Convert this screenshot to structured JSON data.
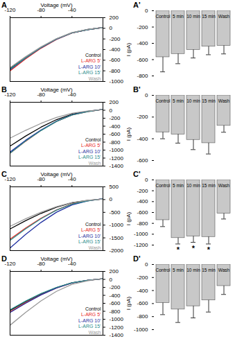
{
  "chart_data": [
    {
      "type": "line",
      "title": "A",
      "xlabel": "Voltage (mV)",
      "ylabel": "I (pA)",
      "legend": "bottom-right",
      "x": [
        -120,
        -100,
        -80,
        -60,
        -40,
        -20,
        0
      ],
      "xlim": [
        -120,
        0
      ],
      "xticks": [
        -120,
        -80,
        -40
      ],
      "ylim": [
        -1000,
        200
      ],
      "yticks": [
        200,
        0,
        -200,
        -400,
        -600,
        -800,
        -1000
      ],
      "series": [
        {
          "name": "Control",
          "color": "#000000",
          "values": [
            -760,
            -550,
            -360,
            -200,
            -85,
            -25,
            15
          ]
        },
        {
          "name": "L-ARG 5'",
          "color": "#e8281e",
          "values": [
            -800,
            -575,
            -375,
            -210,
            -90,
            -25,
            15
          ]
        },
        {
          "name": "L-ARG 10'",
          "color": "#1f2fa0",
          "values": [
            -780,
            -560,
            -365,
            -205,
            -85,
            -25,
            15
          ]
        },
        {
          "name": "L-ARG 15'",
          "color": "#2a8c8c",
          "values": [
            -770,
            -555,
            -360,
            -200,
            -85,
            -25,
            15
          ]
        },
        {
          "name": "Wash",
          "color": "#999999",
          "values": [
            -740,
            -535,
            -350,
            -195,
            -80,
            -20,
            15
          ]
        }
      ]
    },
    {
      "type": "bar",
      "title": "A'",
      "categories": [
        "Control",
        "5 min",
        "10 min",
        "15 min",
        "Wash"
      ],
      "values": [
        -570,
        -530,
        -480,
        -440,
        -430
      ],
      "errors": [
        180,
        120,
        100,
        100,
        100
      ],
      "color": "#c8c8c8",
      "ylim": [
        -800,
        0
      ],
      "yticks": [
        0,
        -200,
        -400,
        -600,
        -800
      ]
    },
    {
      "type": "line",
      "title": "B",
      "xlabel": "Voltage (mV)",
      "ylabel": "I (pA)",
      "legend": "bottom-right",
      "x": [
        -120,
        -100,
        -80,
        -60,
        -40,
        -20,
        0
      ],
      "xlim": [
        -120,
        0
      ],
      "xticks": [
        -120,
        -80,
        -40
      ],
      "ylim": [
        -1400,
        200
      ],
      "yticks": [
        200,
        0,
        -200,
        -400,
        -600,
        -800,
        -1000,
        -1200,
        -1400
      ],
      "series": [
        {
          "name": "Control",
          "color": "#000000",
          "values": [
            -900,
            -650,
            -425,
            -235,
            -100,
            -30,
            20
          ]
        },
        {
          "name": "L-ARG 5'",
          "color": "#e8281e",
          "values": [
            -1080,
            -780,
            -505,
            -280,
            -120,
            -35,
            20
          ]
        },
        {
          "name": "L-ARG 10'",
          "color": "#1f2fa0",
          "values": [
            -1050,
            -755,
            -495,
            -275,
            -115,
            -30,
            20
          ]
        },
        {
          "name": "L-ARG 15'",
          "color": "#2a8c8c",
          "values": [
            -1080,
            -775,
            -510,
            -280,
            -120,
            -35,
            20
          ]
        },
        {
          "name": "Wash",
          "color": "#999999",
          "values": [
            -700,
            -505,
            -330,
            -180,
            -75,
            -20,
            15
          ]
        }
      ]
    },
    {
      "type": "bar",
      "title": "B'",
      "categories": [
        "Control",
        "5 min",
        "10 min",
        "15 min",
        "Wash"
      ],
      "values": [
        -340,
        -360,
        -410,
        -440,
        -280
      ],
      "errors": [
        60,
        80,
        90,
        100,
        60
      ],
      "color": "#c8c8c8",
      "ylim": [
        -600,
        0
      ],
      "yticks": [
        0,
        -200,
        -400,
        -600
      ]
    },
    {
      "type": "line",
      "title": "C",
      "xlabel": "Voltage (mV)",
      "ylabel": "I (pA)",
      "legend": "bottom-right",
      "x": [
        -120,
        -100,
        -80,
        -60,
        -40,
        -20,
        0
      ],
      "xlim": [
        -120,
        0
      ],
      "xticks": [
        -120,
        -80,
        -40
      ],
      "ylim": [
        -2000,
        500
      ],
      "yticks": [
        500,
        0,
        -500,
        -1000,
        -1500,
        -2000
      ],
      "series": [
        {
          "name": "Control",
          "color": "#000000",
          "values": [
            -1150,
            -830,
            -540,
            -300,
            -125,
            -35,
            25
          ]
        },
        {
          "name": "L-ARG 5'",
          "color": "#e8281e",
          "values": [
            -1550,
            -1115,
            -730,
            -405,
            -170,
            -45,
            30
          ]
        },
        {
          "name": "L-ARG 10'",
          "color": "#1f2fa0",
          "values": [
            -1900,
            -1370,
            -895,
            -495,
            -210,
            -55,
            35
          ]
        },
        {
          "name": "L-ARG 15'",
          "color": "#2a8c8c",
          "values": [
            -1600,
            -1150,
            -750,
            -415,
            -175,
            -50,
            30
          ]
        },
        {
          "name": "Wash",
          "color": "#999999",
          "values": [
            -1050,
            -755,
            -495,
            -275,
            -115,
            -30,
            20
          ]
        }
      ]
    },
    {
      "type": "bar",
      "title": "C'",
      "categories": [
        "Control",
        "5 min",
        "10 min",
        "15 min",
        "Wash"
      ],
      "values": [
        -740,
        -1070,
        -1040,
        -1050,
        -620
      ],
      "errors": [
        120,
        110,
        110,
        130,
        100
      ],
      "color": "#c8c8c8",
      "ylim": [
        -1200,
        0
      ],
      "yticks": [
        0,
        -200,
        -400,
        -600,
        -800,
        -1000,
        -1200
      ],
      "annotations": [
        {
          "category": "5 min",
          "text": "*"
        },
        {
          "category": "10 min",
          "text": "*"
        },
        {
          "category": "15 min",
          "text": "*"
        }
      ]
    },
    {
      "type": "line",
      "title": "D",
      "xlabel": "Voltage (mV)",
      "ylabel": "I (pA)",
      "legend": "bottom-right",
      "x": [
        -120,
        -100,
        -80,
        -60,
        -40,
        -20,
        0
      ],
      "xlim": [
        -120,
        0
      ],
      "xticks": [
        -120,
        -80,
        -40
      ],
      "ylim": [
        -1400,
        200
      ],
      "yticks": [
        200,
        0,
        -200,
        -400,
        -600,
        -800,
        -1000,
        -1200,
        -1400
      ],
      "series": [
        {
          "name": "Control",
          "color": "#000000",
          "values": [
            -780,
            -560,
            -365,
            -205,
            -85,
            -25,
            15
          ]
        },
        {
          "name": "L-ARG 5'",
          "color": "#e8281e",
          "values": [
            -820,
            -590,
            -385,
            -215,
            -90,
            -25,
            15
          ]
        },
        {
          "name": "L-ARG 10'",
          "color": "#1f2fa0",
          "values": [
            -830,
            -600,
            -390,
            -215,
            -90,
            -25,
            15
          ]
        },
        {
          "name": "L-ARG 15'",
          "color": "#2a8c8c",
          "values": [
            -760,
            -545,
            -355,
            -200,
            -85,
            -25,
            15
          ]
        },
        {
          "name": "Wash",
          "color": "#999999",
          "values": [
            -1150,
            -830,
            -540,
            -300,
            -125,
            -35,
            20
          ]
        }
      ]
    },
    {
      "type": "bar",
      "title": "D'",
      "categories": [
        "Control",
        "5 min",
        "10 min",
        "15 min",
        "Wash"
      ],
      "values": [
        -590,
        -690,
        -640,
        -550,
        -330
      ],
      "errors": [
        180,
        200,
        180,
        180,
        130
      ],
      "color": "#c8c8c8",
      "ylim": [
        -1000,
        0
      ],
      "yticks": [
        0,
        -200,
        -400,
        -600,
        -800,
        -1000
      ]
    }
  ]
}
